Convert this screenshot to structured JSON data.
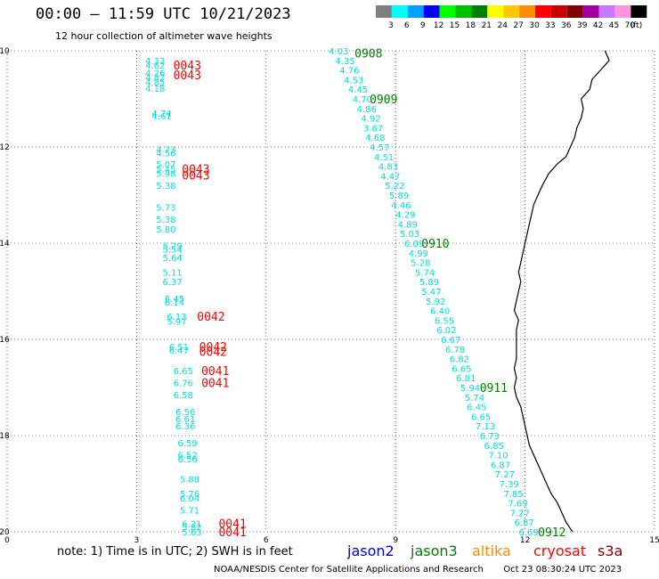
{
  "header": {
    "title": "00:00 – 11:59 UTC 10/21/2023",
    "subtitle": "12 hour collection of altimeter wave heights"
  },
  "legend": {
    "units": "(ft)",
    "bins": [
      {
        "label": "3",
        "color": "#7f7f7f"
      },
      {
        "label": "6",
        "color": "#00ffff"
      },
      {
        "label": "9",
        "color": "#00a0ff"
      },
      {
        "label": "12",
        "color": "#0000ff"
      },
      {
        "label": "15",
        "color": "#00ff00"
      },
      {
        "label": "18",
        "color": "#00c000"
      },
      {
        "label": "21",
        "color": "#008000"
      },
      {
        "label": "24",
        "color": "#ffff00"
      },
      {
        "label": "27",
        "color": "#ffc800"
      },
      {
        "label": "30",
        "color": "#ff8c00"
      },
      {
        "label": "33",
        "color": "#ff0000"
      },
      {
        "label": "36",
        "color": "#c80000"
      },
      {
        "label": "39",
        "color": "#800000"
      },
      {
        "label": "42",
        "color": "#a000a0"
      },
      {
        "label": "45",
        "color": "#c878ff"
      },
      {
        "label": "70",
        "color": "#ff96dc"
      },
      {
        "label": "",
        "color": "#000000"
      }
    ]
  },
  "axes": {
    "lon_ticks": [
      {
        "value": 0,
        "label": "0"
      },
      {
        "value": 3,
        "label": "3"
      },
      {
        "value": 6,
        "label": "6"
      },
      {
        "value": 9,
        "label": "9"
      },
      {
        "value": 12,
        "label": "12"
      },
      {
        "value": 15,
        "label": "15"
      }
    ],
    "lat_ticks": [
      {
        "value": -10,
        "label": "-10"
      },
      {
        "value": -12,
        "label": "-12"
      },
      {
        "value": -14,
        "label": "-14"
      },
      {
        "value": -16,
        "label": "-16"
      },
      {
        "value": -18,
        "label": "-18"
      },
      {
        "value": -20,
        "label": "-20"
      }
    ],
    "lon_range": [
      0,
      15
    ],
    "lat_range": [
      -10,
      -20
    ]
  },
  "tracks": {
    "west": {
      "color": "#00e0e0",
      "points": [
        {
          "lon": 3.2,
          "lat": -10.2,
          "v": "4.33"
        },
        {
          "lon": 3.2,
          "lat": -10.3,
          "v": "4.62"
        },
        {
          "lon": 3.2,
          "lat": -10.45,
          "v": "4.26"
        },
        {
          "lon": 3.2,
          "lat": -10.55,
          "v": "4.82"
        },
        {
          "lon": 3.2,
          "lat": -10.65,
          "v": "4.85"
        },
        {
          "lon": 3.2,
          "lat": -10.78,
          "v": "4.18"
        },
        {
          "lon": 3.35,
          "lat": -11.3,
          "v": "4.74"
        },
        {
          "lon": 3.35,
          "lat": -11.35,
          "v": "4.61"
        },
        {
          "lon": 3.45,
          "lat": -12.05,
          "v": "4.73"
        },
        {
          "lon": 3.45,
          "lat": -12.12,
          "v": "4.56"
        },
        {
          "lon": 3.45,
          "lat": -12.35,
          "v": "5.07"
        },
        {
          "lon": 3.45,
          "lat": -12.45,
          "v": "5.45"
        },
        {
          "lon": 3.45,
          "lat": -12.55,
          "v": "5.98"
        },
        {
          "lon": 3.45,
          "lat": -12.8,
          "v": "5.38"
        },
        {
          "lon": 3.45,
          "lat": -13.25,
          "v": "5.73"
        },
        {
          "lon": 3.45,
          "lat": -13.5,
          "v": "5.38"
        },
        {
          "lon": 3.45,
          "lat": -13.7,
          "v": "5.80"
        },
        {
          "lon": 3.6,
          "lat": -14.05,
          "v": "5.29"
        },
        {
          "lon": 3.6,
          "lat": -14.12,
          "v": "5.54"
        },
        {
          "lon": 3.6,
          "lat": -14.3,
          "v": "5.64"
        },
        {
          "lon": 3.6,
          "lat": -14.6,
          "v": "5.11"
        },
        {
          "lon": 3.6,
          "lat": -14.8,
          "v": "6.37"
        },
        {
          "lon": 3.65,
          "lat": -15.15,
          "v": "6.45"
        },
        {
          "lon": 3.65,
          "lat": -15.22,
          "v": "6.14"
        },
        {
          "lon": 3.7,
          "lat": -15.52,
          "v": "6.13"
        },
        {
          "lon": 3.7,
          "lat": -15.62,
          "v": "5.97"
        },
        {
          "lon": 3.75,
          "lat": -16.15,
          "v": "6.51"
        },
        {
          "lon": 3.75,
          "lat": -16.22,
          "v": "6.47"
        },
        {
          "lon": 3.85,
          "lat": -16.65,
          "v": "6.65"
        },
        {
          "lon": 3.85,
          "lat": -16.9,
          "v": "6.76"
        },
        {
          "lon": 3.85,
          "lat": -17.15,
          "v": "6.58"
        },
        {
          "lon": 3.9,
          "lat": -17.5,
          "v": "6.56"
        },
        {
          "lon": 3.9,
          "lat": -17.65,
          "v": "6.61"
        },
        {
          "lon": 3.9,
          "lat": -17.8,
          "v": "6.36"
        },
        {
          "lon": 3.95,
          "lat": -18.15,
          "v": "6.59"
        },
        {
          "lon": 3.95,
          "lat": -18.4,
          "v": "6.52"
        },
        {
          "lon": 3.95,
          "lat": -18.48,
          "v": "6.56"
        },
        {
          "lon": 4.0,
          "lat": -18.9,
          "v": "5.88"
        },
        {
          "lon": 4.0,
          "lat": -19.2,
          "v": "5.76"
        },
        {
          "lon": 4.0,
          "lat": -19.3,
          "v": "6.04"
        },
        {
          "lon": 4.0,
          "lat": -19.55,
          "v": "5.71"
        },
        {
          "lon": 4.05,
          "lat": -19.82,
          "v": "6.21"
        },
        {
          "lon": 4.05,
          "lat": -19.9,
          "v": "5.82"
        },
        {
          "lon": 4.05,
          "lat": -20.0,
          "v": "5.63"
        }
      ]
    },
    "east": {
      "color": "#00e0e0",
      "points": [
        {
          "lon": 7.45,
          "lat": -10.0,
          "v": "4.03"
        },
        {
          "lon": 7.6,
          "lat": -10.2,
          "v": "4.35"
        },
        {
          "lon": 7.7,
          "lat": -10.4,
          "v": "4.76"
        },
        {
          "lon": 7.8,
          "lat": -10.6,
          "v": "4.53"
        },
        {
          "lon": 7.9,
          "lat": -10.8,
          "v": "4.45"
        },
        {
          "lon": 8.0,
          "lat": -11.0,
          "v": "4.70"
        },
        {
          "lon": 8.1,
          "lat": -11.2,
          "v": "4.86"
        },
        {
          "lon": 8.2,
          "lat": -11.4,
          "v": "4.92"
        },
        {
          "lon": 8.25,
          "lat": -11.6,
          "v": "3.87"
        },
        {
          "lon": 8.3,
          "lat": -11.8,
          "v": "4.68"
        },
        {
          "lon": 8.4,
          "lat": -12.0,
          "v": "4.57"
        },
        {
          "lon": 8.5,
          "lat": -12.2,
          "v": "4.51"
        },
        {
          "lon": 8.6,
          "lat": -12.4,
          "v": "4.83"
        },
        {
          "lon": 8.65,
          "lat": -12.6,
          "v": "4.47"
        },
        {
          "lon": 8.75,
          "lat": -12.8,
          "v": "5.22"
        },
        {
          "lon": 8.85,
          "lat": -13.0,
          "v": "5.89"
        },
        {
          "lon": 8.9,
          "lat": -13.2,
          "v": "4.46"
        },
        {
          "lon": 9.0,
          "lat": -13.4,
          "v": "4.29"
        },
        {
          "lon": 9.05,
          "lat": -13.6,
          "v": "4.89"
        },
        {
          "lon": 9.1,
          "lat": -13.8,
          "v": "5.03"
        },
        {
          "lon": 9.2,
          "lat": -14.0,
          "v": "6.09"
        },
        {
          "lon": 9.3,
          "lat": -14.2,
          "v": "4.99"
        },
        {
          "lon": 9.35,
          "lat": -14.4,
          "v": "5.28"
        },
        {
          "lon": 9.45,
          "lat": -14.6,
          "v": "5.74"
        },
        {
          "lon": 9.55,
          "lat": -14.8,
          "v": "5.89"
        },
        {
          "lon": 9.6,
          "lat": -15.0,
          "v": "5.47"
        },
        {
          "lon": 9.7,
          "lat": -15.2,
          "v": "5.92"
        },
        {
          "lon": 9.8,
          "lat": -15.4,
          "v": "6.40"
        },
        {
          "lon": 9.9,
          "lat": -15.6,
          "v": "6.55"
        },
        {
          "lon": 9.95,
          "lat": -15.8,
          "v": "6.02"
        },
        {
          "lon": 10.05,
          "lat": -16.0,
          "v": "6.67"
        },
        {
          "lon": 10.15,
          "lat": -16.2,
          "v": "6.78"
        },
        {
          "lon": 10.25,
          "lat": -16.4,
          "v": "6.82"
        },
        {
          "lon": 10.3,
          "lat": -16.6,
          "v": "6.65"
        },
        {
          "lon": 10.4,
          "lat": -16.8,
          "v": "6.81"
        },
        {
          "lon": 10.5,
          "lat": -17.0,
          "v": "5.94"
        },
        {
          "lon": 10.6,
          "lat": -17.2,
          "v": "5.74"
        },
        {
          "lon": 10.65,
          "lat": -17.4,
          "v": "6.45"
        },
        {
          "lon": 10.75,
          "lat": -17.6,
          "v": "6.65"
        },
        {
          "lon": 10.85,
          "lat": -17.8,
          "v": "7.13"
        },
        {
          "lon": 10.95,
          "lat": -18.0,
          "v": "6.73"
        },
        {
          "lon": 11.05,
          "lat": -18.2,
          "v": "6.85"
        },
        {
          "lon": 11.15,
          "lat": -18.4,
          "v": "7.10"
        },
        {
          "lon": 11.2,
          "lat": -18.6,
          "v": "6.87"
        },
        {
          "lon": 11.3,
          "lat": -18.8,
          "v": "7.27"
        },
        {
          "lon": 11.4,
          "lat": -19.0,
          "v": "7.39"
        },
        {
          "lon": 11.5,
          "lat": -19.2,
          "v": "7.85"
        },
        {
          "lon": 11.6,
          "lat": -19.4,
          "v": "7.69"
        },
        {
          "lon": 11.65,
          "lat": -19.6,
          "v": "7.27"
        },
        {
          "lon": 11.75,
          "lat": -19.8,
          "v": "6.87"
        },
        {
          "lon": 11.85,
          "lat": -20.0,
          "v": "6.69"
        }
      ]
    }
  },
  "time_labels": [
    {
      "text": "0043",
      "color": "#ff0000",
      "lon": 3.85,
      "lat": -10.3
    },
    {
      "text": "0043",
      "color": "#ff0000",
      "lon": 3.85,
      "lat": -10.5
    },
    {
      "text": "0043",
      "color": "#ff0000",
      "lon": 4.05,
      "lat": -12.45
    },
    {
      "text": "0043",
      "color": "#ff0000",
      "lon": 4.05,
      "lat": -12.58
    },
    {
      "text": "0042",
      "color": "#ff0000",
      "lon": 4.4,
      "lat": -15.52
    },
    {
      "text": "0042",
      "color": "#ff0000",
      "lon": 4.45,
      "lat": -16.15
    },
    {
      "text": "0042",
      "color": "#ff0000",
      "lon": 4.45,
      "lat": -16.25
    },
    {
      "text": "0041",
      "color": "#ff0000",
      "lon": 4.5,
      "lat": -16.65
    },
    {
      "text": "0041",
      "color": "#ff0000",
      "lon": 4.5,
      "lat": -16.9
    },
    {
      "text": "0041",
      "color": "#ff0000",
      "lon": 4.9,
      "lat": -19.82
    },
    {
      "text": "0041",
      "color": "#ff0000",
      "lon": 4.9,
      "lat": -20.0
    },
    {
      "text": "0908",
      "color": "#008000",
      "lon": 8.05,
      "lat": -10.05
    },
    {
      "text": "0909",
      "color": "#008000",
      "lon": 8.4,
      "lat": -11.0
    },
    {
      "text": "0910",
      "color": "#008000",
      "lon": 9.6,
      "lat": -14.0
    },
    {
      "text": "0911",
      "color": "#008000",
      "lon": 10.95,
      "lat": -17.0
    },
    {
      "text": "0912",
      "color": "#008000",
      "lon": 12.3,
      "lat": -20.0
    }
  ],
  "coastline": [
    [
      13.85,
      -10.0
    ],
    [
      13.95,
      -10.2
    ],
    [
      13.75,
      -10.4
    ],
    [
      13.55,
      -10.6
    ],
    [
      13.5,
      -10.8
    ],
    [
      13.3,
      -11.0
    ],
    [
      13.35,
      -11.2
    ],
    [
      13.3,
      -11.4
    ],
    [
      13.2,
      -11.6
    ],
    [
      13.15,
      -11.8
    ],
    [
      13.05,
      -12.0
    ],
    [
      12.95,
      -12.2
    ],
    [
      12.75,
      -12.35
    ],
    [
      12.55,
      -12.55
    ],
    [
      12.4,
      -12.8
    ],
    [
      12.3,
      -13.0
    ],
    [
      12.2,
      -13.2
    ],
    [
      12.15,
      -13.4
    ],
    [
      12.1,
      -13.6
    ],
    [
      12.05,
      -13.8
    ],
    [
      12.0,
      -14.0
    ],
    [
      11.95,
      -14.2
    ],
    [
      11.9,
      -14.4
    ],
    [
      11.85,
      -14.6
    ],
    [
      11.9,
      -14.8
    ],
    [
      11.85,
      -15.0
    ],
    [
      11.8,
      -15.2
    ],
    [
      11.75,
      -15.4
    ],
    [
      11.85,
      -15.6
    ],
    [
      11.8,
      -15.8
    ],
    [
      11.8,
      -16.0
    ],
    [
      11.8,
      -16.2
    ],
    [
      11.8,
      -16.4
    ],
    [
      11.75,
      -16.6
    ],
    [
      11.8,
      -16.8
    ],
    [
      11.75,
      -17.0
    ],
    [
      11.8,
      -17.2
    ],
    [
      11.9,
      -17.4
    ],
    [
      11.95,
      -17.6
    ],
    [
      12.0,
      -17.8
    ],
    [
      12.05,
      -18.0
    ],
    [
      12.1,
      -18.2
    ],
    [
      12.2,
      -18.4
    ],
    [
      12.3,
      -18.6
    ],
    [
      12.4,
      -18.8
    ],
    [
      12.5,
      -19.0
    ],
    [
      12.6,
      -19.2
    ],
    [
      12.75,
      -19.4
    ],
    [
      12.85,
      -19.6
    ],
    [
      12.95,
      -19.8
    ],
    [
      13.1,
      -20.0
    ]
  ],
  "note": "note:  1) Time is in UTC;  2) SWH is in feet",
  "satellites": [
    {
      "name": "jason2",
      "color": "#0000c8"
    },
    {
      "name": "jason3",
      "color": "#008000"
    },
    {
      "name": "altika",
      "color": "#ff8c00"
    },
    {
      "name": "cryosat",
      "color": "#ff0000"
    },
    {
      "name": "s3a",
      "color": "#800000"
    }
  ],
  "credit": {
    "org": "NOAA/NESDIS Center for Satellite Applications and Research",
    "timestamp": "Oct 23 08:30:24 UTC 2023"
  }
}
